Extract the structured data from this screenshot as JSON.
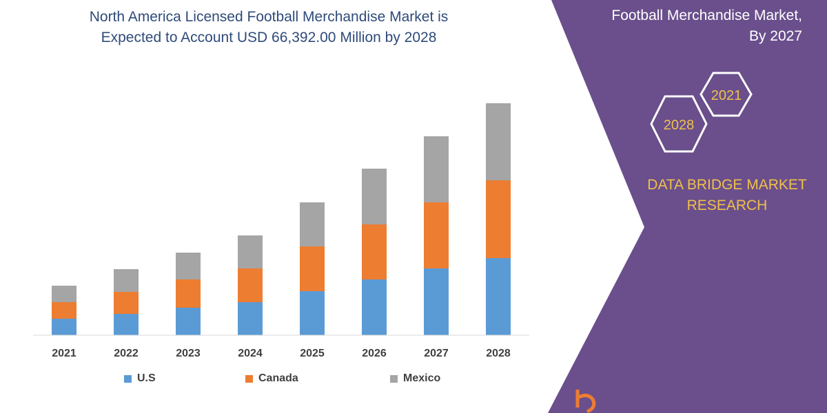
{
  "header": {
    "title_line1": "North America  Licensed Football Merchandise Market is",
    "title_line2": "Expected to Account USD 66,392.00 Million by 2028"
  },
  "side_panel": {
    "title_line1": "Football Merchandise Market,",
    "title_line2": "By 2027",
    "hex_labels": [
      "2021",
      "2028"
    ],
    "brand_line1": "DATA BRIDGE MARKET",
    "brand_line2": "RESEARCH",
    "panel_color": "#6a4f8c",
    "brand_color": "#f0c04a"
  },
  "chart_data": {
    "type": "bar",
    "stacked": true,
    "categories": [
      "2021",
      "2022",
      "2023",
      "2024",
      "2025",
      "2026",
      "2027",
      "2028"
    ],
    "series": [
      {
        "name": "U.S",
        "color": "#5b9bd5",
        "values": [
          24,
          31,
          40,
          48,
          64,
          81,
          97,
          112
        ]
      },
      {
        "name": "Canada",
        "color": "#ed7d31",
        "values": [
          24,
          32,
          41,
          49,
          65,
          80,
          96,
          113
        ]
      },
      {
        "name": "Mexico",
        "color": "#a5a5a5",
        "values": [
          24,
          33,
          39,
          48,
          64,
          81,
          96,
          112
        ]
      }
    ],
    "ylim": [
      0,
      340
    ],
    "grid": false,
    "legend": "bottom"
  }
}
